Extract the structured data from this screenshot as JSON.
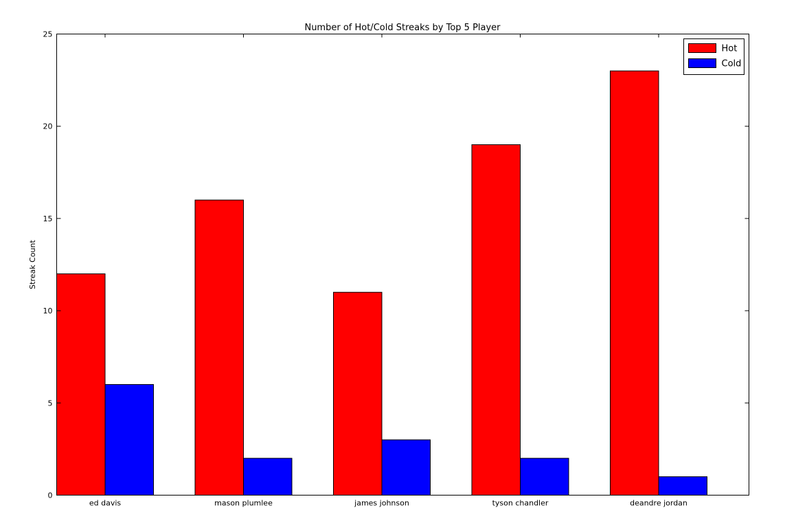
{
  "chart_data": {
    "type": "bar",
    "title": "Number of Hot/Cold Streaks by Top 5 Player",
    "xlabel": "",
    "ylabel": "Streak Count",
    "categories": [
      "ed davis",
      "mason plumlee",
      "james johnson",
      "tyson chandler",
      "deandre jordan"
    ],
    "series": [
      {
        "name": "Hot",
        "color": "#ff0000",
        "values": [
          12,
          16,
          11,
          19,
          23
        ]
      },
      {
        "name": "Cold",
        "color": "#0000ff",
        "values": [
          6,
          2,
          3,
          2,
          1
        ]
      }
    ],
    "ylim": [
      0,
      25
    ],
    "yticks": [
      0,
      5,
      10,
      15,
      20,
      25
    ],
    "grid": false,
    "legend_position": "top-right"
  }
}
